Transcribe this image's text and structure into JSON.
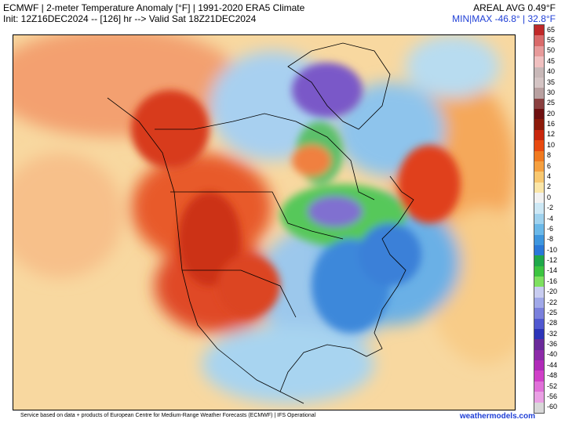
{
  "header": {
    "line1": "ECMWF | 2-meter Temperature Anomaly [°F] | 1991-2020 ERA5 Climate",
    "line2": "Init: 12Z16DEC2024 -- [126] hr --> Valid Sat 18Z21DEC2024",
    "areal_avg": "AREAL AVG 0.49°F",
    "minmax": "MIN|MAX -46.8° | 32.8°F"
  },
  "colorbar": {
    "labels": [
      "65",
      "55",
      "50",
      "45",
      "40",
      "35",
      "30",
      "25",
      "20",
      "16",
      "12",
      "10",
      "8",
      "6",
      "4",
      "2",
      "0",
      "-2",
      "-4",
      "-6",
      "-8",
      "-10",
      "-12",
      "-14",
      "-16",
      "-20",
      "-22",
      "-25",
      "-28",
      "-32",
      "-36",
      "-40",
      "-44",
      "-48",
      "-52",
      "-56",
      "-60"
    ],
    "colors": [
      "#c02828",
      "#d96a6a",
      "#e79a9a",
      "#f0c0c0",
      "#c8b8b8",
      "#d4c4c4",
      "#b8a0a0",
      "#8a4040",
      "#6e1010",
      "#8c1a0a",
      "#c8260c",
      "#e84a10",
      "#f07a20",
      "#f5a040",
      "#f8c870",
      "#fbe6a8",
      "#f2f2f2",
      "#cde8f5",
      "#9fd2ee",
      "#6ab8e8",
      "#3e96de",
      "#2a78d8",
      "#1fa84a",
      "#3cc440",
      "#7ee060",
      "#c8ccf0",
      "#a0a8e8",
      "#7a80dc",
      "#5058d0",
      "#2c34b8",
      "#6a2a9a",
      "#8c2aa8",
      "#b02ab8",
      "#d040c8",
      "#e070d8",
      "#eaa0e4",
      "#d8d8d8"
    ]
  },
  "footer": {
    "source": "Service based on data + products of European Centre for Medium-Range Weather Forecasts (ECMWF) | IFS Operational",
    "site": "weathermodels.com"
  }
}
